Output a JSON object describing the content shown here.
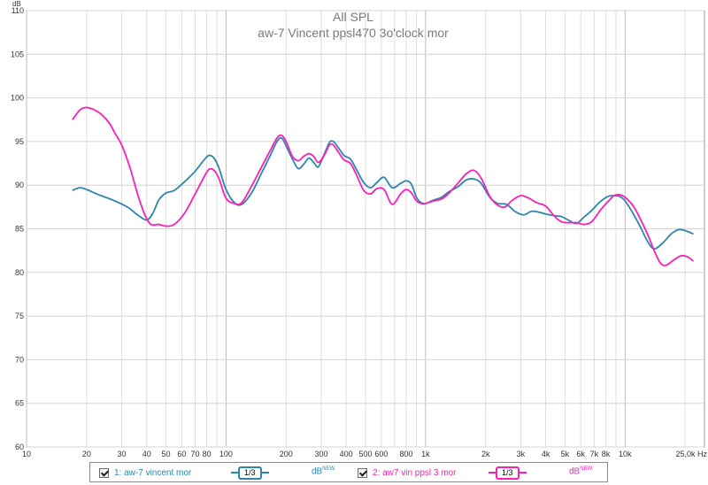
{
  "chart_data": {
    "type": "line",
    "title": "All SPL",
    "subtitle": "aw-7 Vincent ppsl470 3o'clock mor",
    "ylabel": "dB",
    "xlabel_unit": "Hz",
    "x_scale": "log",
    "xlim": [
      10,
      25000
    ],
    "ylim": [
      60,
      110
    ],
    "grid": true,
    "legend_position": "bottom",
    "y_ticks": [
      60,
      65,
      70,
      75,
      80,
      85,
      90,
      95,
      100,
      105,
      110
    ],
    "x_ticks": [
      {
        "value": 10,
        "label": "10"
      },
      {
        "value": 20,
        "label": "20"
      },
      {
        "value": 30,
        "label": "30"
      },
      {
        "value": 40,
        "label": "40"
      },
      {
        "value": 50,
        "label": "50"
      },
      {
        "value": 60,
        "label": "60"
      },
      {
        "value": 70,
        "label": "70"
      },
      {
        "value": 80,
        "label": "80"
      },
      {
        "value": 100,
        "label": "100"
      },
      {
        "value": 200,
        "label": "200"
      },
      {
        "value": 300,
        "label": "300"
      },
      {
        "value": 400,
        "label": "400"
      },
      {
        "value": 500,
        "label": "500"
      },
      {
        "value": 600,
        "label": "600"
      },
      {
        "value": 800,
        "label": "800"
      },
      {
        "value": 1000,
        "label": "1k"
      },
      {
        "value": 2000,
        "label": "2k"
      },
      {
        "value": 3000,
        "label": "3k"
      },
      {
        "value": 4000,
        "label": "4k"
      },
      {
        "value": 5000,
        "label": "5k"
      },
      {
        "value": 6000,
        "label": "6k"
      },
      {
        "value": 7000,
        "label": "7k"
      },
      {
        "value": 8000,
        "label": "8k"
      },
      {
        "value": 10000,
        "label": "10k"
      },
      {
        "value": 25000,
        "label": "25,0k Hz"
      }
    ],
    "series": [
      {
        "name": "1: aw-7 vincent mor",
        "color": "#2e86ab",
        "points": [
          [
            17,
            89.4
          ],
          [
            18.5,
            89.7
          ],
          [
            20,
            89.5
          ],
          [
            23,
            88.9
          ],
          [
            27,
            88.3
          ],
          [
            32,
            87.5
          ],
          [
            36,
            86.6
          ],
          [
            40,
            86.0
          ],
          [
            43,
            86.8
          ],
          [
            46,
            88.3
          ],
          [
            50,
            89.1
          ],
          [
            55,
            89.4
          ],
          [
            62,
            90.4
          ],
          [
            70,
            91.6
          ],
          [
            77,
            92.8
          ],
          [
            82,
            93.4
          ],
          [
            87,
            93.1
          ],
          [
            92,
            92.0
          ],
          [
            100,
            89.5
          ],
          [
            110,
            88.0
          ],
          [
            120,
            87.8
          ],
          [
            135,
            89.2
          ],
          [
            150,
            91.3
          ],
          [
            165,
            93.2
          ],
          [
            180,
            95.0
          ],
          [
            190,
            95.4
          ],
          [
            200,
            94.5
          ],
          [
            215,
            93.0
          ],
          [
            230,
            91.9
          ],
          [
            245,
            92.4
          ],
          [
            260,
            93.1
          ],
          [
            275,
            92.6
          ],
          [
            290,
            92.1
          ],
          [
            310,
            93.5
          ],
          [
            330,
            94.9
          ],
          [
            345,
            95.0
          ],
          [
            365,
            94.3
          ],
          [
            390,
            93.4
          ],
          [
            420,
            93.0
          ],
          [
            450,
            91.8
          ],
          [
            490,
            90.3
          ],
          [
            530,
            89.7
          ],
          [
            570,
            90.3
          ],
          [
            620,
            90.9
          ],
          [
            680,
            89.7
          ],
          [
            750,
            90.2
          ],
          [
            800,
            90.5
          ],
          [
            850,
            90.1
          ],
          [
            900,
            88.6
          ],
          [
            950,
            88.0
          ],
          [
            1000,
            87.9
          ],
          [
            1100,
            88.3
          ],
          [
            1200,
            88.6
          ],
          [
            1300,
            89.2
          ],
          [
            1450,
            89.8
          ],
          [
            1600,
            90.6
          ],
          [
            1750,
            90.7
          ],
          [
            1900,
            90.2
          ],
          [
            2100,
            88.6
          ],
          [
            2300,
            87.9
          ],
          [
            2550,
            87.8
          ],
          [
            2800,
            87.0
          ],
          [
            3100,
            86.6
          ],
          [
            3400,
            87.0
          ],
          [
            3700,
            86.9
          ],
          [
            4000,
            86.7
          ],
          [
            4400,
            86.5
          ],
          [
            4800,
            86.4
          ],
          [
            5200,
            86.0
          ],
          [
            5700,
            85.6
          ],
          [
            6200,
            86.3
          ],
          [
            6800,
            87.1
          ],
          [
            7500,
            88.1
          ],
          [
            8200,
            88.7
          ],
          [
            8800,
            88.8
          ],
          [
            9400,
            88.7
          ],
          [
            10000,
            88.2
          ],
          [
            11000,
            86.7
          ],
          [
            12000,
            85.1
          ],
          [
            13000,
            83.5
          ],
          [
            14000,
            82.7
          ],
          [
            15500,
            83.4
          ],
          [
            17000,
            84.4
          ],
          [
            18500,
            84.9
          ],
          [
            20000,
            84.8
          ],
          [
            22000,
            84.4
          ]
        ]
      },
      {
        "name": "2: aw7 vin ppsl 3 mor",
        "color": "#ff1fb4",
        "points": [
          [
            17,
            97.5
          ],
          [
            18.5,
            98.6
          ],
          [
            20,
            98.9
          ],
          [
            22,
            98.6
          ],
          [
            24,
            98.0
          ],
          [
            26,
            97.1
          ],
          [
            28,
            95.8
          ],
          [
            30,
            94.6
          ],
          [
            33,
            92.0
          ],
          [
            36,
            89.0
          ],
          [
            39,
            86.7
          ],
          [
            42,
            85.5
          ],
          [
            46,
            85.5
          ],
          [
            50,
            85.3
          ],
          [
            55,
            85.5
          ],
          [
            62,
            86.8
          ],
          [
            70,
            89.0
          ],
          [
            77,
            90.8
          ],
          [
            82,
            91.8
          ],
          [
            87,
            91.7
          ],
          [
            92,
            90.8
          ],
          [
            100,
            88.5
          ],
          [
            110,
            87.9
          ],
          [
            120,
            88.0
          ],
          [
            135,
            90.0
          ],
          [
            150,
            92.0
          ],
          [
            165,
            93.8
          ],
          [
            180,
            95.4
          ],
          [
            190,
            95.7
          ],
          [
            200,
            95.0
          ],
          [
            215,
            93.3
          ],
          [
            230,
            92.8
          ],
          [
            245,
            93.3
          ],
          [
            260,
            93.6
          ],
          [
            275,
            93.3
          ],
          [
            290,
            92.6
          ],
          [
            310,
            93.4
          ],
          [
            330,
            94.6
          ],
          [
            345,
            94.6
          ],
          [
            365,
            93.8
          ],
          [
            390,
            92.9
          ],
          [
            420,
            92.5
          ],
          [
            450,
            91.2
          ],
          [
            490,
            89.4
          ],
          [
            530,
            89.0
          ],
          [
            570,
            89.6
          ],
          [
            620,
            89.5
          ],
          [
            680,
            87.8
          ],
          [
            750,
            89.0
          ],
          [
            800,
            89.5
          ],
          [
            850,
            89.1
          ],
          [
            900,
            88.2
          ],
          [
            950,
            87.9
          ],
          [
            1000,
            87.9
          ],
          [
            1100,
            88.2
          ],
          [
            1200,
            88.4
          ],
          [
            1300,
            89.0
          ],
          [
            1450,
            90.2
          ],
          [
            1600,
            91.3
          ],
          [
            1750,
            91.7
          ],
          [
            1900,
            90.8
          ],
          [
            2100,
            88.7
          ],
          [
            2300,
            87.7
          ],
          [
            2500,
            87.5
          ],
          [
            2700,
            88.2
          ],
          [
            3000,
            88.8
          ],
          [
            3300,
            88.5
          ],
          [
            3600,
            88.0
          ],
          [
            4000,
            87.6
          ],
          [
            4400,
            86.5
          ],
          [
            4800,
            85.8
          ],
          [
            5200,
            85.7
          ],
          [
            5700,
            85.7
          ],
          [
            6200,
            85.5
          ],
          [
            6800,
            85.8
          ],
          [
            7500,
            87.1
          ],
          [
            8200,
            88.1
          ],
          [
            8800,
            88.8
          ],
          [
            9400,
            88.9
          ],
          [
            10000,
            88.6
          ],
          [
            11000,
            87.6
          ],
          [
            12000,
            86.0
          ],
          [
            13000,
            84.3
          ],
          [
            14000,
            82.5
          ],
          [
            15000,
            81.1
          ],
          [
            16000,
            80.8
          ],
          [
            17500,
            81.4
          ],
          [
            19000,
            81.9
          ],
          [
            20500,
            81.8
          ],
          [
            22000,
            81.3
          ]
        ]
      }
    ]
  },
  "legend": {
    "items": [
      {
        "label": "1: aw-7 vincent mor",
        "smoothing": "1/3",
        "unit": "dB",
        "unit_sup": "NEW",
        "color": "#2e86ab"
      },
      {
        "label": "2: aw7 vin ppsl 3 mor",
        "smoothing": "1/3",
        "unit": "dB",
        "unit_sup": "NEW",
        "color": "#ff1fb4"
      }
    ]
  }
}
